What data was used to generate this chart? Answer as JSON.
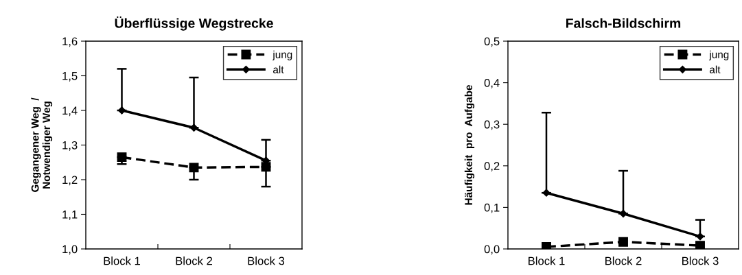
{
  "chart_data": [
    {
      "type": "line",
      "title": "Überflüssige Wegstrecke",
      "ylabel": "Gegangener Weg  /\nNotwendiger Weg",
      "categories": [
        "Block 1",
        "Block 2",
        "Block 3"
      ],
      "ylim": [
        1.0,
        1.6
      ],
      "yticks": [
        {
          "value": 1.0,
          "label": "1,0"
        },
        {
          "value": 1.1,
          "label": "1,1"
        },
        {
          "value": 1.2,
          "label": "1,2"
        },
        {
          "value": 1.3,
          "label": "1,3"
        },
        {
          "value": 1.4,
          "label": "1,4"
        },
        {
          "value": 1.5,
          "label": "1,5"
        },
        {
          "value": 1.6,
          "label": "1,6"
        }
      ],
      "grid": false,
      "legend": "top right",
      "series": [
        {
          "name": "jung",
          "color": "#000000",
          "marker": "square",
          "line_style": "dashed",
          "values": [
            1.265,
            1.235,
            1.237
          ],
          "errors": [
            [
              1.245,
              1.265
            ],
            [
              1.2,
              1.235
            ],
            [
              1.18,
              1.237
            ]
          ]
        },
        {
          "name": "alt",
          "color": "#000000",
          "marker": "diamond",
          "line_style": "solid",
          "values": [
            1.4,
            1.35,
            1.255
          ],
          "errors": [
            [
              1.4,
              1.52
            ],
            [
              1.35,
              1.495
            ],
            [
              1.255,
              1.315
            ]
          ]
        }
      ]
    },
    {
      "type": "line",
      "title": "Falsch-Bildschirm",
      "ylabel": "Häufigkeit  pro  Aufgabe",
      "categories": [
        "Block 1",
        "Block 2",
        "Block 3"
      ],
      "ylim": [
        0.0,
        0.5
      ],
      "yticks": [
        {
          "value": 0.0,
          "label": "0,0"
        },
        {
          "value": 0.1,
          "label": "0,1"
        },
        {
          "value": 0.2,
          "label": "0,2"
        },
        {
          "value": 0.3,
          "label": "0,3"
        },
        {
          "value": 0.4,
          "label": "0,4"
        },
        {
          "value": 0.5,
          "label": "0,5"
        }
      ],
      "grid": false,
      "legend": "top right",
      "series": [
        {
          "name": "jung",
          "color": "#000000",
          "marker": "square",
          "line_style": "dashed",
          "values": [
            0.005,
            0.017,
            0.008
          ]
        },
        {
          "name": "alt",
          "color": "#000000",
          "marker": "diamond",
          "line_style": "solid",
          "values": [
            0.135,
            0.085,
            0.03
          ],
          "errors": [
            [
              0.135,
              0.328
            ],
            [
              0.085,
              0.188
            ],
            [
              0.03,
              0.07
            ]
          ]
        }
      ]
    }
  ]
}
